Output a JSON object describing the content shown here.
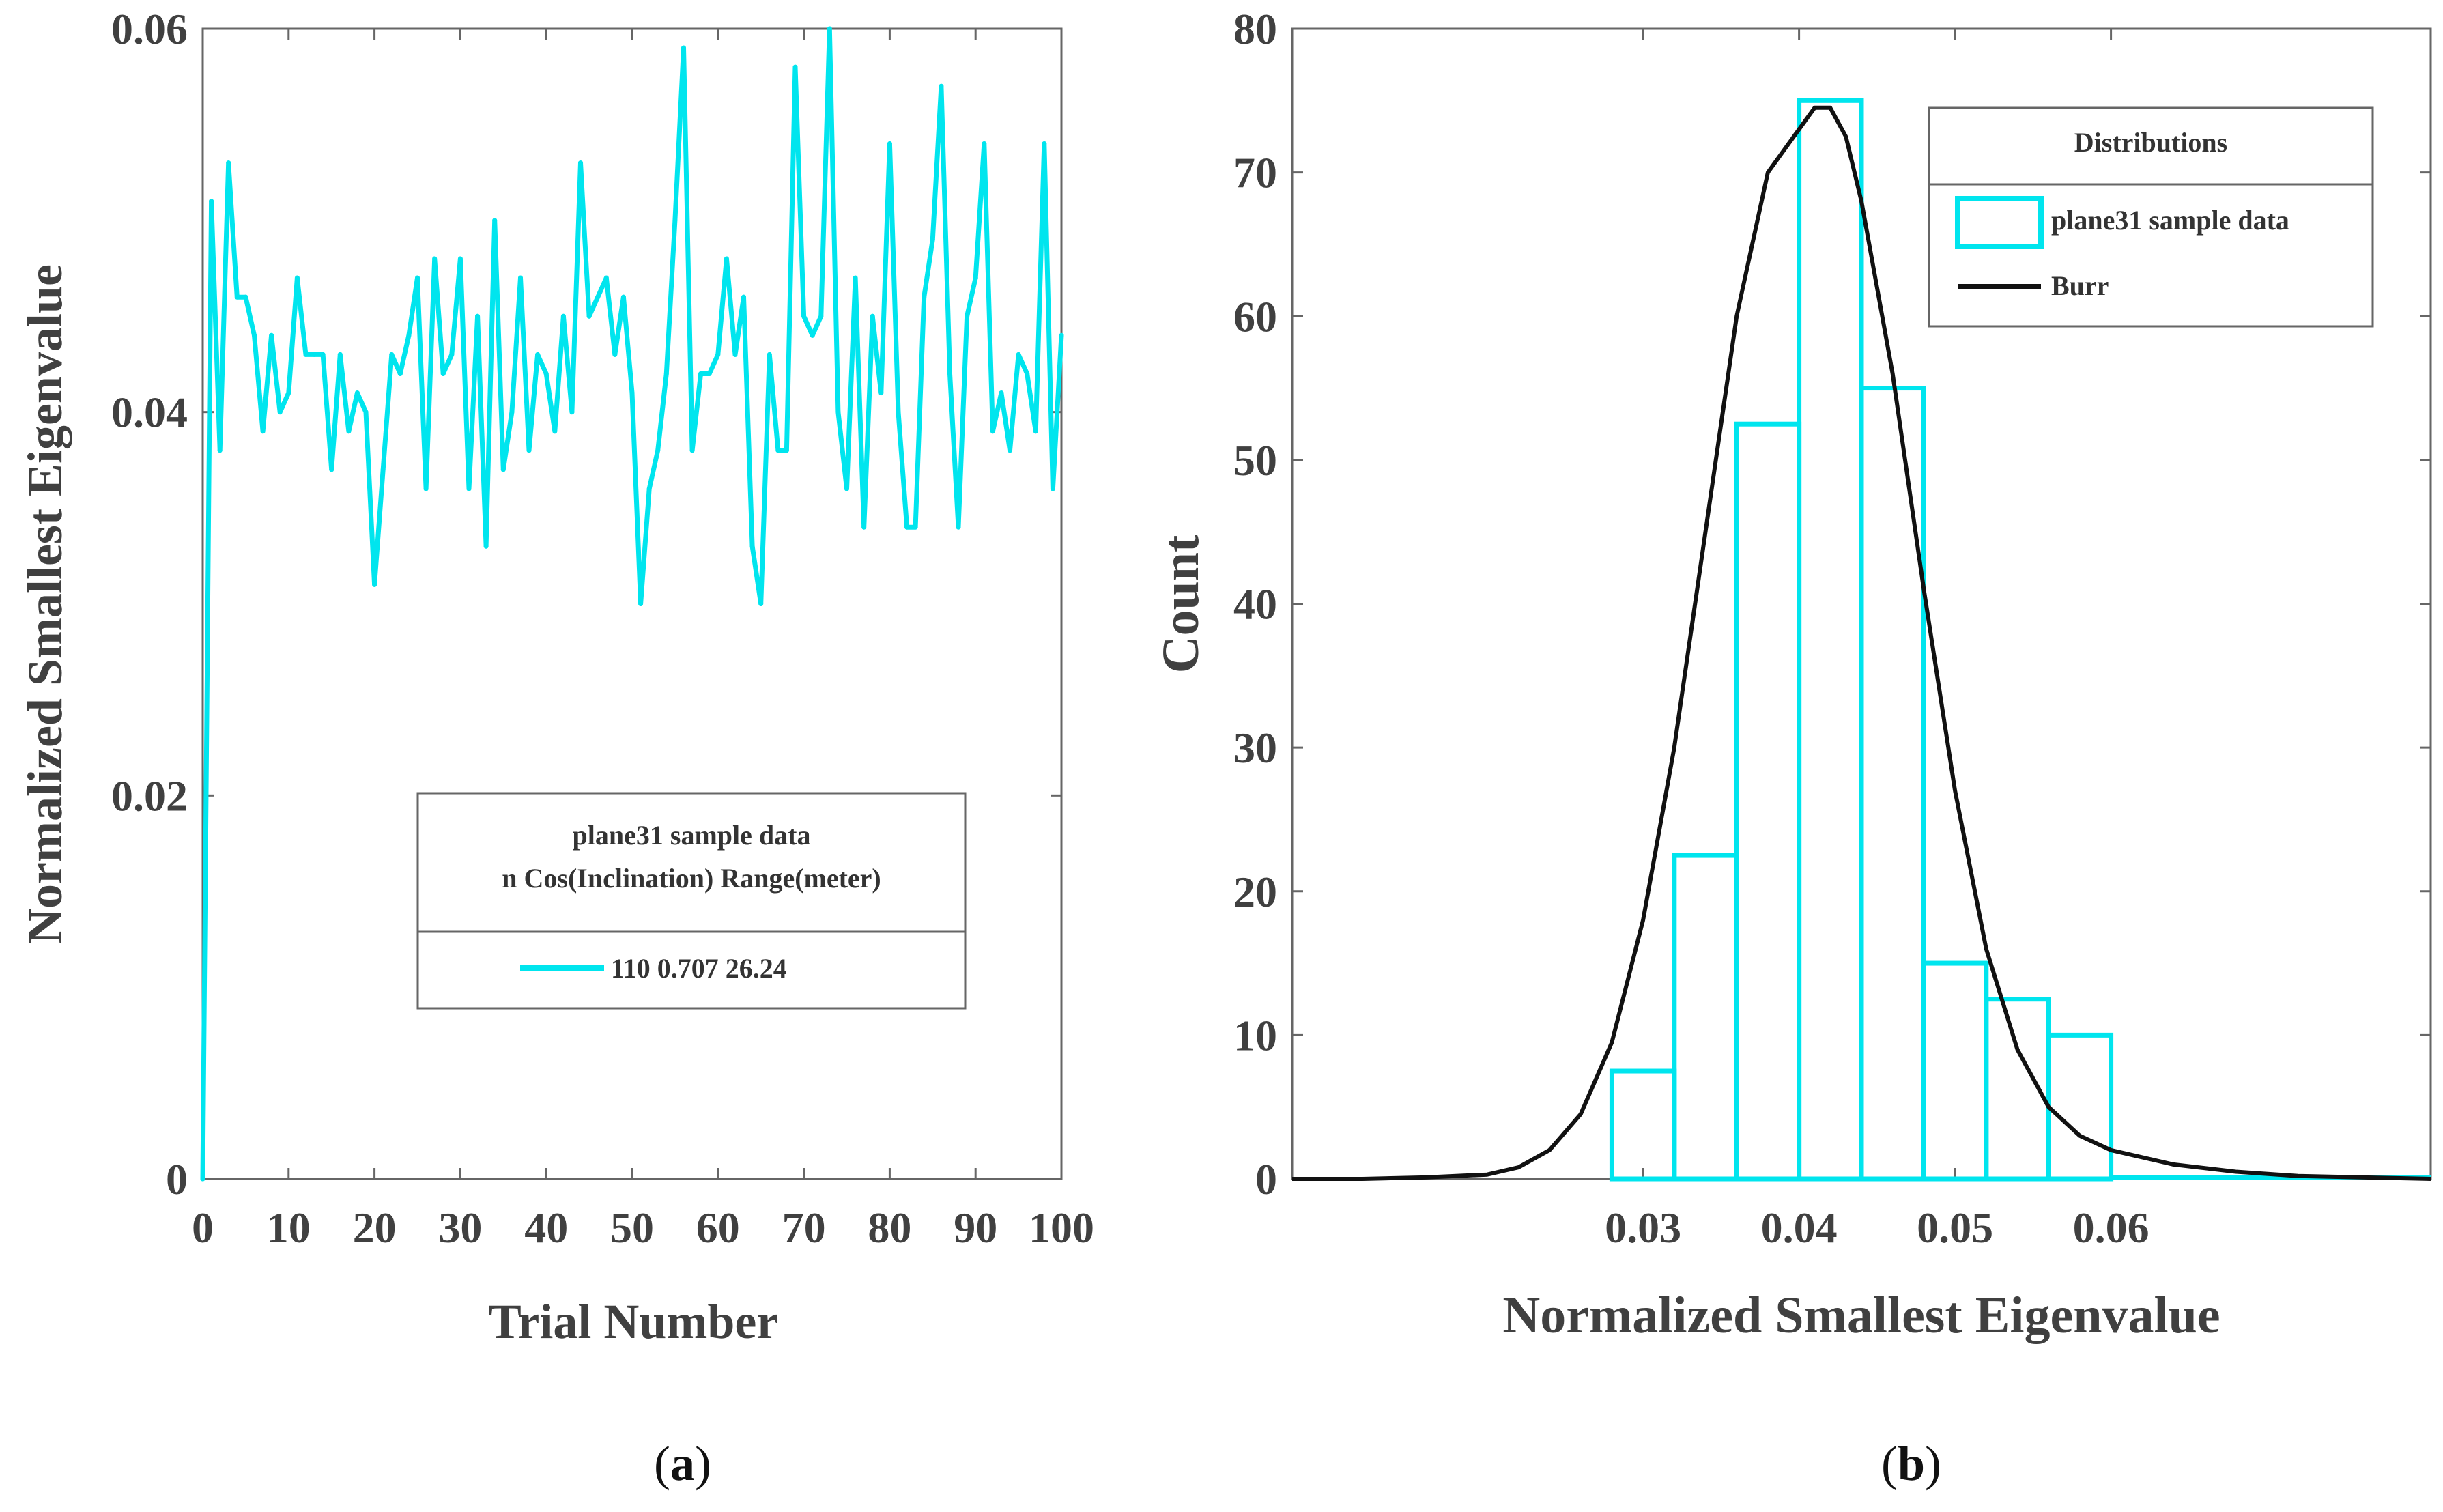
{
  "chart_data": [
    {
      "type": "line",
      "panel_label": "a",
      "title": "",
      "xlabel": "Trial Number",
      "ylabel": "Normalized Smallest Eigenvalue",
      "xlim": [
        0,
        100
      ],
      "ylim": [
        0,
        0.06
      ],
      "xticks": [
        0,
        10,
        20,
        30,
        40,
        50,
        60,
        70,
        80,
        90,
        100
      ],
      "xtick_labels": [
        "0",
        "10",
        "20",
        "30",
        "40",
        "50",
        "60",
        "70",
        "80",
        "90",
        "100"
      ],
      "yticks": [
        0,
        0.02,
        0.04,
        0.06
      ],
      "ytick_labels": [
        "0",
        "0.02",
        "0.04",
        "0.06"
      ],
      "grid": false,
      "legend": {
        "placement": "lower-right",
        "title_line1": "plane31 sample data",
        "title_line2": "n  Cos(Inclination)  Range(meter)",
        "entry": "110    0.707    26.24"
      },
      "series": [
        {
          "name": "plane31 sample data",
          "color": "#00E5EE",
          "x": [
            0,
            1,
            2,
            3,
            4,
            5,
            6,
            7,
            8,
            9,
            10,
            11,
            12,
            13,
            14,
            15,
            16,
            17,
            18,
            19,
            20,
            21,
            22,
            23,
            24,
            25,
            26,
            27,
            28,
            29,
            30,
            31,
            32,
            33,
            34,
            35,
            36,
            37,
            38,
            39,
            40,
            41,
            42,
            43,
            44,
            45,
            46,
            47,
            48,
            49,
            50,
            51,
            52,
            53,
            54,
            55,
            56,
            57,
            58,
            59,
            60,
            61,
            62,
            63,
            64,
            65,
            66,
            67,
            68,
            69,
            70,
            71,
            72,
            73,
            74,
            75,
            76,
            77,
            78,
            79,
            80,
            81,
            82,
            83,
            84,
            85,
            86,
            87,
            88,
            89,
            90,
            91,
            92,
            93,
            94,
            95,
            96,
            97,
            98,
            99,
            100
          ],
          "y": [
            0.0,
            0.051,
            0.038,
            0.053,
            0.046,
            0.046,
            0.044,
            0.039,
            0.044,
            0.04,
            0.041,
            0.047,
            0.043,
            0.043,
            0.043,
            0.037,
            0.043,
            0.039,
            0.041,
            0.04,
            0.031,
            0.037,
            0.043,
            0.042,
            0.044,
            0.047,
            0.036,
            0.048,
            0.042,
            0.043,
            0.048,
            0.036,
            0.045,
            0.033,
            0.05,
            0.037,
            0.04,
            0.047,
            0.038,
            0.043,
            0.042,
            0.039,
            0.045,
            0.04,
            0.053,
            0.045,
            0.046,
            0.047,
            0.043,
            0.046,
            0.041,
            0.03,
            0.036,
            0.038,
            0.042,
            0.05,
            0.059,
            0.038,
            0.042,
            0.042,
            0.043,
            0.048,
            0.043,
            0.046,
            0.033,
            0.03,
            0.043,
            0.038,
            0.038,
            0.058,
            0.045,
            0.044,
            0.045,
            0.06,
            0.04,
            0.036,
            0.047,
            0.034,
            0.045,
            0.041,
            0.054,
            0.04,
            0.034,
            0.034,
            0.046,
            0.049,
            0.057,
            0.042,
            0.034,
            0.045,
            0.047,
            0.054,
            0.039,
            0.041,
            0.038,
            0.043,
            0.042,
            0.039,
            0.054,
            0.036,
            0.044
          ]
        }
      ]
    },
    {
      "type": "bar",
      "panel_label": "b",
      "title": "",
      "xlabel": "Normalized Smallest Eigenvalue",
      "ylabel": "Count",
      "xlim": [
        0.0075,
        0.0805
      ],
      "ylim": [
        0,
        80
      ],
      "xticks": [
        0.03,
        0.04,
        0.05,
        0.06
      ],
      "xtick_labels": [
        "0.03",
        "0.04",
        "0.05",
        "0.06"
      ],
      "yticks": [
        0,
        10,
        20,
        30,
        40,
        50,
        60,
        70,
        80
      ],
      "ytick_labels": [
        "0",
        "10",
        "20",
        "30",
        "40",
        "50",
        "60",
        "70",
        "80"
      ],
      "grid": false,
      "legend": {
        "placement": "top-right",
        "title": "Distributions",
        "entries": [
          "plane31 sample data",
          "Burr"
        ]
      },
      "histogram": {
        "name": "plane31 sample data",
        "color": "#00E5EE",
        "bin_edges": [
          0.028,
          0.032,
          0.036,
          0.04,
          0.044,
          0.048,
          0.052,
          0.056,
          0.06
        ],
        "counts": [
          7.5,
          22.5,
          52.5,
          75,
          55,
          15,
          12.5,
          10
        ]
      },
      "fit": {
        "name": "Burr",
        "color": "#111111",
        "x": [
          0.0075,
          0.012,
          0.016,
          0.02,
          0.022,
          0.024,
          0.026,
          0.028,
          0.03,
          0.032,
          0.034,
          0.036,
          0.038,
          0.04,
          0.041,
          0.042,
          0.043,
          0.044,
          0.046,
          0.048,
          0.05,
          0.052,
          0.054,
          0.056,
          0.058,
          0.06,
          0.064,
          0.068,
          0.072,
          0.0805
        ],
        "y": [
          0,
          0,
          0.1,
          0.3,
          0.8,
          2,
          4.5,
          9.5,
          18,
          30,
          45,
          60,
          70,
          73,
          74.5,
          74.5,
          72.5,
          68,
          56,
          41,
          27,
          16,
          9,
          5,
          3,
          2,
          1,
          0.5,
          0.2,
          0
        ]
      }
    }
  ]
}
